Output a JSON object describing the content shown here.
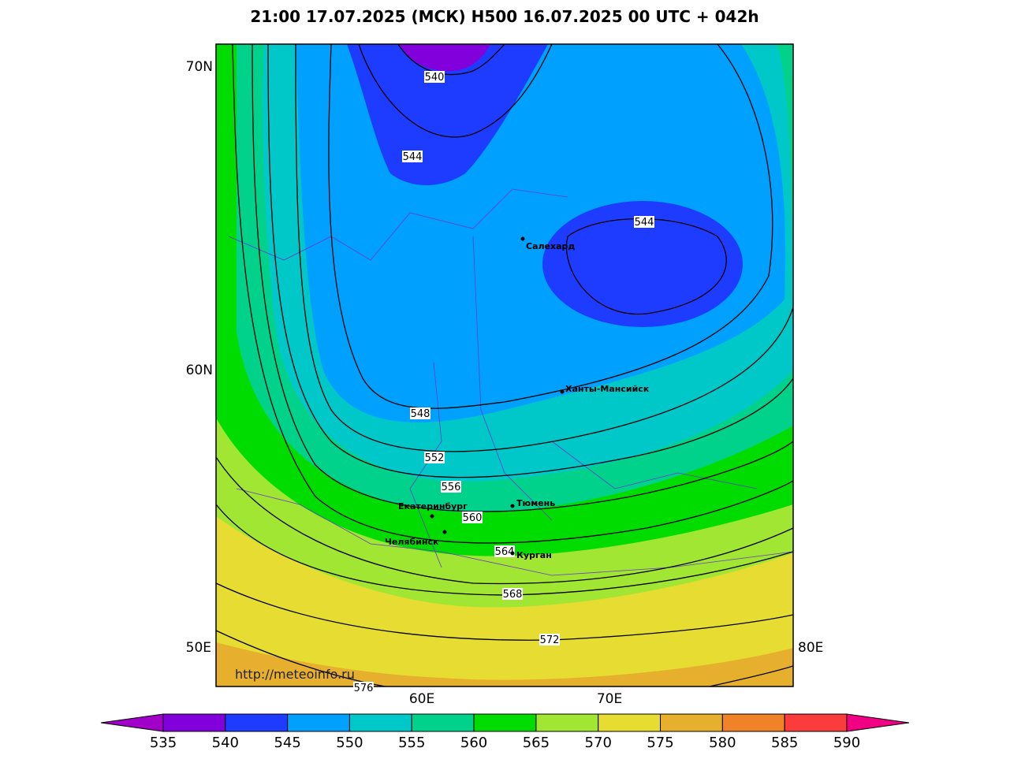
{
  "header": {
    "title": "21:00 17.07.2025 (МСК) H500  16.07.2025 00 UTC + 042h"
  },
  "axis_labels": {
    "lat_70": "70N",
    "lat_60": "60N",
    "lon_50": "50E",
    "lon_60": "60E",
    "lon_70": "70E",
    "lon_80": "80E"
  },
  "contour_labels": [
    "540",
    "544",
    "544",
    "548",
    "552",
    "556",
    "560",
    "564",
    "568",
    "572",
    "576"
  ],
  "cities": [
    "Салехард",
    "Ханты-Мансийск",
    "Тюмень",
    "Екатеринбург",
    "Челябинск",
    "Курган"
  ],
  "watermark": "http://meteoinfo.ru",
  "colorbar": {
    "ticks": [
      535,
      540,
      545,
      550,
      555,
      560,
      565,
      570,
      575,
      580,
      585,
      590
    ],
    "colors": [
      "#a000c8",
      "#8200dc",
      "#1e3cff",
      "#00a0ff",
      "#00c8c8",
      "#00d28c",
      "#00dc00",
      "#a0e632",
      "#e6dc32",
      "#e6af2d",
      "#f08228",
      "#fa3c3c",
      "#f00082"
    ]
  }
}
